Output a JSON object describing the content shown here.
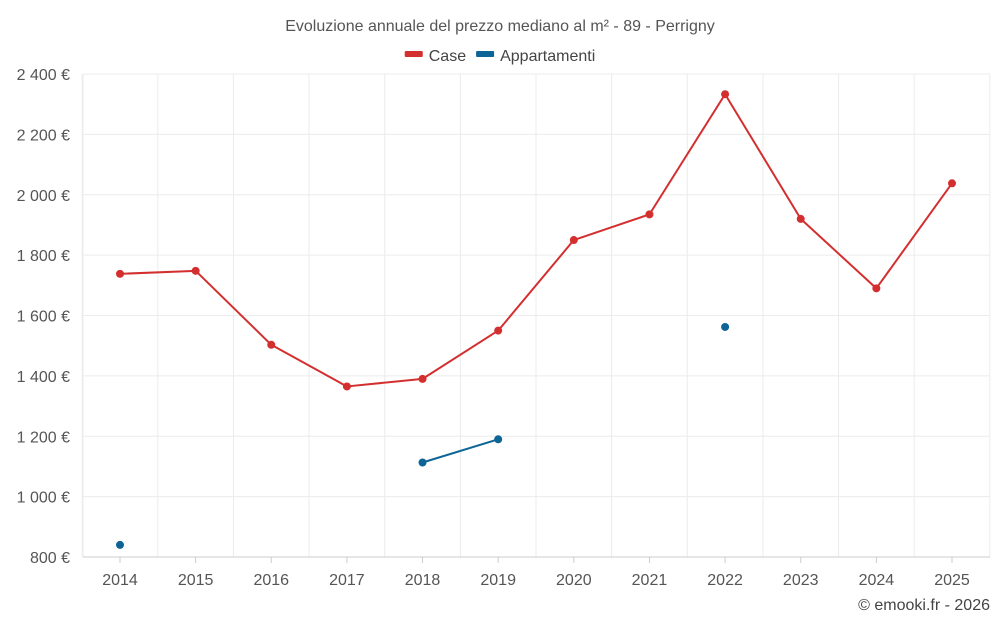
{
  "chart_data": {
    "type": "line",
    "title": "Evoluzione annuale del prezzo mediano al m² - 89 - Perrigny",
    "categories": [
      "2014",
      "2015",
      "2016",
      "2017",
      "2018",
      "2019",
      "2020",
      "2021",
      "2022",
      "2023",
      "2024",
      "2025"
    ],
    "ylim": [
      800,
      2400
    ],
    "yticks": [
      800,
      1000,
      1200,
      1400,
      1600,
      1800,
      2000,
      2200,
      2400
    ],
    "ytick_labels": [
      "800 €",
      "1 000 €",
      "1 200 €",
      "1 400 €",
      "1 600 €",
      "1 800 €",
      "2 000 €",
      "2 200 €",
      "2 400 €"
    ],
    "grid": true,
    "legend_position": "top-center",
    "series": [
      {
        "name": "Case",
        "color": "#d32f2f",
        "values": [
          1738,
          1748,
          1503,
          1365,
          1390,
          1550,
          1850,
          1935,
          2333,
          1920,
          1690,
          2038
        ]
      },
      {
        "name": "Appartamenti",
        "color": "#0d6496",
        "values": [
          840,
          null,
          null,
          null,
          1113,
          1190,
          null,
          null,
          1562,
          null,
          null,
          null
        ]
      }
    ],
    "credit": "© emooki.fr - 2026"
  }
}
